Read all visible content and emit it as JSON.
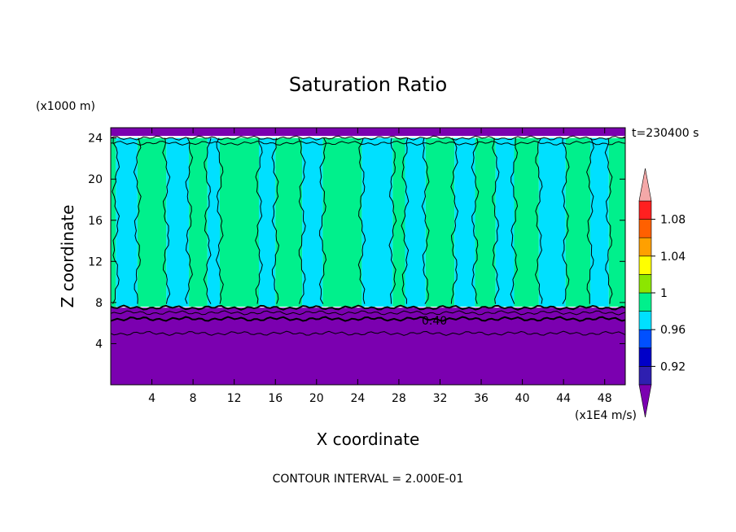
{
  "chart_data": {
    "type": "heatmap",
    "title": "Saturation Ratio",
    "time_label": "t=230400 s",
    "xlabel": "X coordinate",
    "ylabel": "Z coordinate",
    "x_unit": "(x1E4 m/s)",
    "y_unit": "(x1000 m)",
    "xlim": [
      0,
      50
    ],
    "ylim": [
      0,
      25
    ],
    "x_ticks": [
      4,
      8,
      12,
      16,
      20,
      24,
      28,
      32,
      36,
      40,
      44,
      48
    ],
    "y_ticks": [
      4,
      8,
      12,
      16,
      20,
      24
    ],
    "footer": "CONTOUR INTERVAL = 2.000E-01",
    "contour_label": "0.40",
    "colorbar": {
      "levels": [
        0.9,
        0.92,
        0.94,
        0.96,
        0.98,
        1.0,
        1.02,
        1.04,
        1.06,
        1.08,
        1.1
      ],
      "colors": [
        "#5a1aa0",
        "#2e1fb0",
        "#0000c8",
        "#0050ff",
        "#00e0ff",
        "#00f08c",
        "#8ce600",
        "#ffff00",
        "#ffa000",
        "#ff6000",
        "#ff2020"
      ],
      "low_color": "#7b00b0",
      "high_color": "#f4a8a8",
      "labels": [
        {
          "value": 0.92,
          "text": "0.92"
        },
        {
          "value": 0.96,
          "text": "0.96"
        },
        {
          "value": 1.0,
          "text": "1"
        },
        {
          "value": 1.04,
          "text": "1.04"
        },
        {
          "value": 1.08,
          "text": "1.08"
        }
      ]
    },
    "regions": [
      {
        "name": "lower-dry-layer",
        "z_range": [
          0,
          7.5
        ],
        "level": "below 0.90"
      },
      {
        "name": "upper-dry-cap",
        "z_range": [
          24.2,
          25
        ],
        "level": "below 0.90"
      },
      {
        "name": "moist-column-layer",
        "z_range": [
          7.6,
          24
        ],
        "levels": [
          0.98,
          1.0
        ]
      }
    ],
    "contour_heights": [
      5.0,
      6.4,
      7.0,
      7.5,
      23.5,
      24.0
    ],
    "columns": [
      {
        "x": [
          0.0,
          0.5
        ],
        "level": 1.0
      },
      {
        "x": [
          0.5,
          2.6
        ],
        "level": 0.98
      },
      {
        "x": [
          2.6,
          5.4
        ],
        "level": 1.0
      },
      {
        "x": [
          5.4,
          7.6
        ],
        "level": 0.98
      },
      {
        "x": [
          7.6,
          9.4
        ],
        "level": 1.0
      },
      {
        "x": [
          9.4,
          10.6
        ],
        "level": 0.98
      },
      {
        "x": [
          10.6,
          14.4
        ],
        "level": 1.0
      },
      {
        "x": [
          14.4,
          16.0
        ],
        "level": 0.98
      },
      {
        "x": [
          16.0,
          18.6
        ],
        "level": 1.0
      },
      {
        "x": [
          18.6,
          20.6
        ],
        "level": 0.98
      },
      {
        "x": [
          20.6,
          24.4
        ],
        "level": 1.0
      },
      {
        "x": [
          24.4,
          27.4
        ],
        "level": 0.98
      },
      {
        "x": [
          27.4,
          28.6
        ],
        "level": 1.0
      },
      {
        "x": [
          28.6,
          30.6
        ],
        "level": 0.98
      },
      {
        "x": [
          30.6,
          33.4
        ],
        "level": 1.0
      },
      {
        "x": [
          33.4,
          35.4
        ],
        "level": 0.98
      },
      {
        "x": [
          35.4,
          37.4
        ],
        "level": 1.0
      },
      {
        "x": [
          37.4,
          39.2
        ],
        "level": 0.98
      },
      {
        "x": [
          39.2,
          41.6
        ],
        "level": 1.0
      },
      {
        "x": [
          41.6,
          44.2
        ],
        "level": 0.98
      },
      {
        "x": [
          44.2,
          46.6
        ],
        "level": 1.0
      },
      {
        "x": [
          46.6,
          48.4
        ],
        "level": 0.98
      },
      {
        "x": [
          48.4,
          50.0
        ],
        "level": 1.0
      }
    ]
  }
}
